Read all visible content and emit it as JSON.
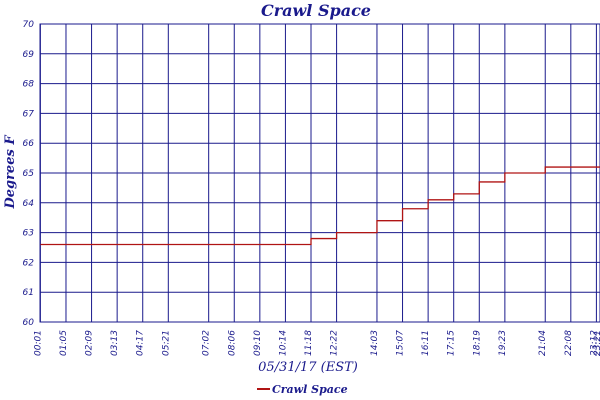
{
  "chart_data": {
    "type": "line",
    "title": "Crawl Space",
    "xlabel": "05/31/17 (EST)",
    "ylabel": "Degrees F",
    "ylim": [
      60,
      70
    ],
    "y_ticks": [
      "60",
      "61",
      "62",
      "63",
      "64",
      "65",
      "66",
      "67",
      "68",
      "69",
      "70"
    ],
    "x_tick_labels": [
      "00:01",
      "01:05",
      "02:09",
      "03:13",
      "04:17",
      "05:21",
      "07:02",
      "08:06",
      "09:10",
      "10:14",
      "11:18",
      "12:22",
      "14:03",
      "15:07",
      "16:11",
      "17:15",
      "18:19",
      "19:23",
      "21:04",
      "22:08",
      "23:12",
      "23:21"
    ],
    "grid": true,
    "legend_position": "bottom-center",
    "colors": {
      "grid": "#1a1a8c",
      "axis_text": "#1a1a8c",
      "series": "#b01414"
    },
    "series": [
      {
        "name": "Crawl Space",
        "points": [
          [
            "00:01",
            62.6
          ],
          [
            "01:05",
            62.6
          ],
          [
            "02:09",
            62.6
          ],
          [
            "03:13",
            62.6
          ],
          [
            "04:17",
            62.6
          ],
          [
            "05:21",
            62.6
          ],
          [
            "07:02",
            62.6
          ],
          [
            "08:06",
            62.6
          ],
          [
            "09:10",
            62.6
          ],
          [
            "10:14",
            62.6
          ],
          [
            "11:18",
            62.8
          ],
          [
            "12:22",
            63.0
          ],
          [
            "14:03",
            63.4
          ],
          [
            "15:07",
            63.8
          ],
          [
            "16:11",
            64.1
          ],
          [
            "17:15",
            64.3
          ],
          [
            "18:19",
            64.7
          ],
          [
            "19:23",
            65.0
          ],
          [
            "21:04",
            65.2
          ],
          [
            "22:08",
            65.2
          ],
          [
            "23:12",
            65.2
          ],
          [
            "23:21",
            65.2
          ]
        ]
      }
    ]
  }
}
